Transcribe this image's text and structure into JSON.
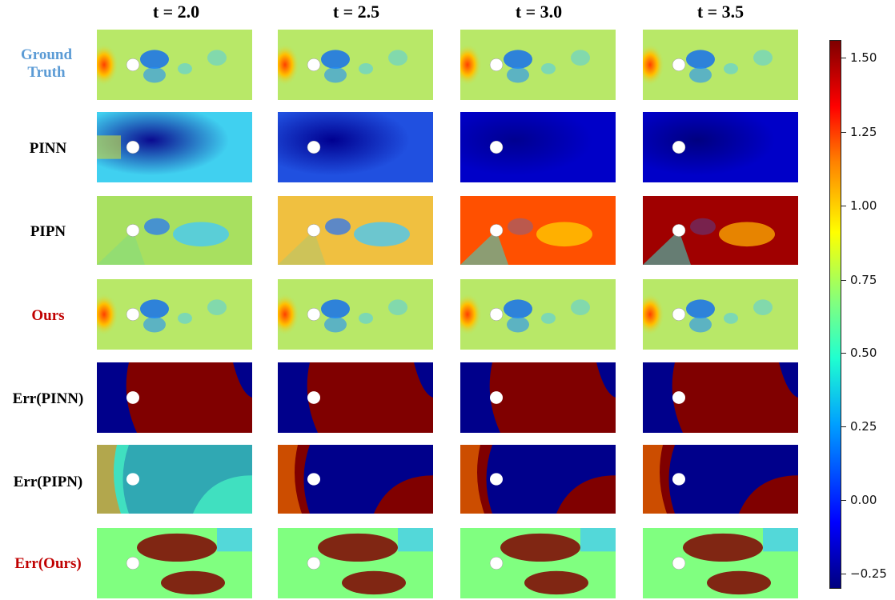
{
  "columns": [
    "t = 2.0",
    "t = 2.5",
    "t = 3.0",
    "t = 3.5"
  ],
  "rows": [
    {
      "label": "Ground Truth",
      "color": "#5b9bd5"
    },
    {
      "label": "PINN",
      "color": "#000000"
    },
    {
      "label": "PIPN",
      "color": "#000000"
    },
    {
      "label": "Ours",
      "color": "#c00000"
    },
    {
      "label": "Err(PINN)",
      "color": "#000000"
    },
    {
      "label": "Err(PIPN)",
      "color": "#000000"
    },
    {
      "label": "Err(Ours)",
      "color": "#c00000"
    }
  ],
  "colorbar": {
    "colormap": "jet",
    "range": [
      -0.3,
      1.56
    ],
    "ticks": [
      "1.50",
      "1.25",
      "1.00",
      "0.75",
      "0.50",
      "0.25",
      "0.00",
      "−0.25"
    ]
  }
}
